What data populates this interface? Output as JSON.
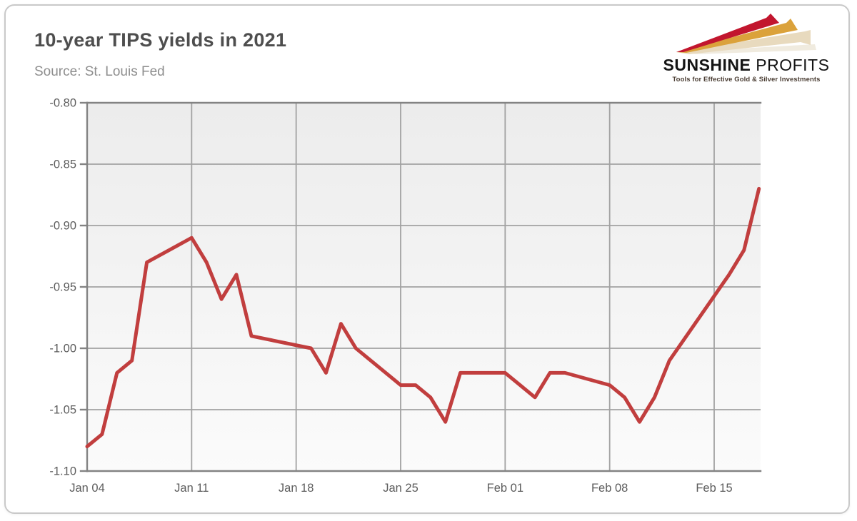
{
  "header": {
    "title": "10-year TIPS yields in 2021",
    "source": "Source: St. Louis Fed"
  },
  "logo": {
    "name_primary": "SUNSHINE",
    "name_secondary": " PROFITS",
    "tagline": "Tools for Effective Gold & Silver Investments",
    "colors": {
      "arrow_red": "#c2162e",
      "arrow_gold": "#dba23b",
      "arrow_beige": "#e8dabe",
      "arrow_shadow": "#f0ebdf"
    }
  },
  "chart_data": {
    "type": "line",
    "title": "10-year TIPS yields in 2021",
    "xlabel": "",
    "ylabel": "",
    "ylim": [
      -1.1,
      -0.8
    ],
    "grid": true,
    "legend_position": "none",
    "x_tick_labels": [
      "Jan 04",
      "Jan 11",
      "Jan 18",
      "Jan 25",
      "Feb 01",
      "Feb 08",
      "Feb 15"
    ],
    "y_tick_labels": [
      "-0.80",
      "-0.85",
      "-0.90",
      "-0.95",
      "-1.00",
      "-1.05",
      "-1.10"
    ],
    "series": [
      {
        "name": "10-year TIPS yield (%)",
        "color": "#c13e3e",
        "points": [
          {
            "date": "Jan 04",
            "value": -1.08
          },
          {
            "date": "Jan 05",
            "value": -1.07
          },
          {
            "date": "Jan 06",
            "value": -1.02
          },
          {
            "date": "Jan 07",
            "value": -1.01
          },
          {
            "date": "Jan 08",
            "value": -0.93
          },
          {
            "date": "Jan 11",
            "value": -0.91
          },
          {
            "date": "Jan 12",
            "value": -0.93
          },
          {
            "date": "Jan 13",
            "value": -0.96
          },
          {
            "date": "Jan 14",
            "value": -0.94
          },
          {
            "date": "Jan 15",
            "value": -0.99
          },
          {
            "date": "Jan 19",
            "value": -1.0
          },
          {
            "date": "Jan 20",
            "value": -1.02
          },
          {
            "date": "Jan 21",
            "value": -0.98
          },
          {
            "date": "Jan 22",
            "value": -1.0
          },
          {
            "date": "Jan 25",
            "value": -1.03
          },
          {
            "date": "Jan 26",
            "value": -1.03
          },
          {
            "date": "Jan 27",
            "value": -1.04
          },
          {
            "date": "Jan 28",
            "value": -1.06
          },
          {
            "date": "Jan 29",
            "value": -1.02
          },
          {
            "date": "Feb 01",
            "value": -1.02
          },
          {
            "date": "Feb 02",
            "value": -1.03
          },
          {
            "date": "Feb 03",
            "value": -1.04
          },
          {
            "date": "Feb 04",
            "value": -1.02
          },
          {
            "date": "Feb 05",
            "value": -1.02
          },
          {
            "date": "Feb 08",
            "value": -1.03
          },
          {
            "date": "Feb 09",
            "value": -1.04
          },
          {
            "date": "Feb 10",
            "value": -1.06
          },
          {
            "date": "Feb 11",
            "value": -1.04
          },
          {
            "date": "Feb 12",
            "value": -1.01
          },
          {
            "date": "Feb 16",
            "value": -0.94
          },
          {
            "date": "Feb 17",
            "value": -0.92
          },
          {
            "date": "Feb 18",
            "value": -0.87
          }
        ]
      }
    ]
  }
}
